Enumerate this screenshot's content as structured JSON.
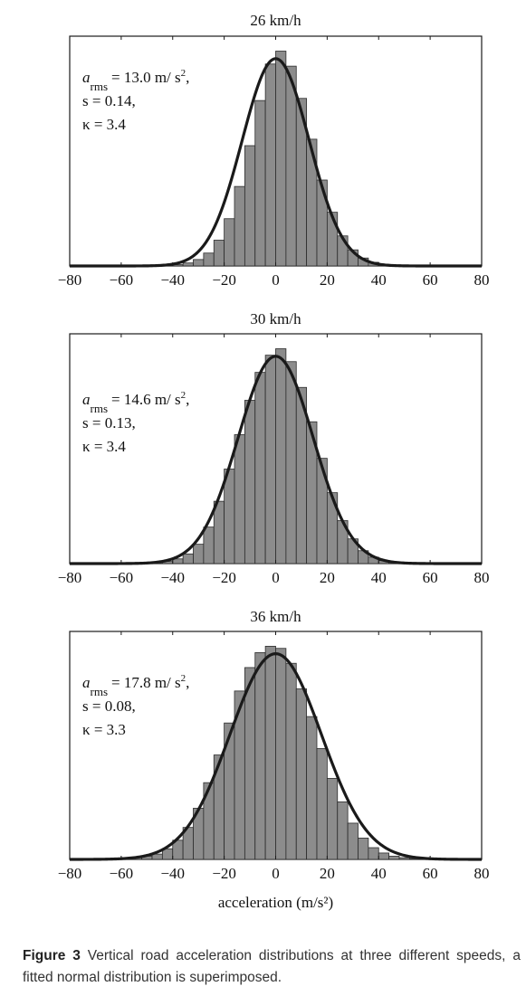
{
  "chart_data": [
    {
      "type": "bar",
      "title": "26 km/h",
      "xlim": [
        -80,
        80
      ],
      "xticks": [
        "−80",
        "−60",
        "−40",
        "−20",
        "0",
        "20",
        "40",
        "60",
        "80"
      ],
      "bin_width": 4,
      "bin_centers": [
        -42,
        -38,
        -34,
        -30,
        -26,
        -22,
        -18,
        -14,
        -10,
        -6,
        -2,
        2,
        6,
        10,
        14,
        18,
        22,
        26,
        30,
        34,
        38,
        42,
        46
      ],
      "values": [
        0.002,
        0.006,
        0.014,
        0.03,
        0.06,
        0.12,
        0.22,
        0.37,
        0.56,
        0.77,
        0.94,
        1.0,
        0.93,
        0.78,
        0.59,
        0.4,
        0.25,
        0.14,
        0.075,
        0.037,
        0.017,
        0.007,
        0.002
      ],
      "fit": {
        "name": "normal",
        "mean": 0,
        "sd": 13.0
      },
      "annotation": {
        "arms_label": "a",
        "arms_sub": "rms",
        "arms_value": "= 13.0 m/ s",
        "arms_exp": "2",
        "arms_tail": ",",
        "s": "s = 0.14,",
        "kappa": "κ = 3.4"
      }
    },
    {
      "type": "bar",
      "title": "30 km/h",
      "xlim": [
        -80,
        80
      ],
      "xticks": [
        "−80",
        "−60",
        "−40",
        "−20",
        "0",
        "20",
        "40",
        "60",
        "80"
      ],
      "bin_width": 4,
      "bin_centers": [
        -50,
        -46,
        -42,
        -38,
        -34,
        -30,
        -26,
        -22,
        -18,
        -14,
        -10,
        -6,
        -2,
        2,
        6,
        10,
        14,
        18,
        22,
        26,
        30,
        34,
        38,
        42,
        46,
        50,
        54
      ],
      "values": [
        0.002,
        0.005,
        0.01,
        0.022,
        0.045,
        0.09,
        0.17,
        0.29,
        0.44,
        0.6,
        0.76,
        0.89,
        0.97,
        1.0,
        0.94,
        0.82,
        0.66,
        0.49,
        0.33,
        0.2,
        0.115,
        0.06,
        0.03,
        0.014,
        0.006,
        0.003,
        0.001
      ],
      "fit": {
        "name": "normal",
        "mean": 0,
        "sd": 14.6
      },
      "annotation": {
        "arms_label": "a",
        "arms_sub": "rms",
        "arms_value": "= 14.6 m/ s",
        "arms_exp": "2",
        "arms_tail": ",",
        "s": "s = 0.13,",
        "kappa": "κ = 3.4"
      }
    },
    {
      "type": "bar",
      "title": "36 km/h",
      "xlim": [
        -80,
        80
      ],
      "xticks": [
        "−80",
        "−60",
        "−40",
        "−20",
        "0",
        "20",
        "40",
        "60",
        "80"
      ],
      "xlabel": "acceleration (m/s²)",
      "bin_width": 4,
      "bin_centers": [
        -62,
        -58,
        -54,
        -50,
        -46,
        -42,
        -38,
        -34,
        -30,
        -26,
        -22,
        -18,
        -14,
        -10,
        -6,
        -2,
        2,
        6,
        10,
        14,
        18,
        22,
        26,
        30,
        34,
        38,
        42,
        46,
        50,
        54,
        58,
        62,
        66
      ],
      "values": [
        0.001,
        0.003,
        0.008,
        0.015,
        0.025,
        0.05,
        0.09,
        0.15,
        0.24,
        0.36,
        0.49,
        0.64,
        0.79,
        0.9,
        0.97,
        1.0,
        0.99,
        0.92,
        0.8,
        0.67,
        0.52,
        0.38,
        0.27,
        0.17,
        0.1,
        0.055,
        0.03,
        0.015,
        0.008,
        0.004,
        0.002,
        0.001,
        0.0005
      ],
      "fit": {
        "name": "normal",
        "mean": 0,
        "sd": 17.8
      },
      "annotation": {
        "arms_label": "a",
        "arms_sub": "rms",
        "arms_value": "= 17.8 m/ s",
        "arms_exp": "2",
        "arms_tail": ",",
        "s": "s = 0.08,",
        "kappa": "κ = 3.3"
      }
    }
  ],
  "caption": {
    "label": "Figure 3",
    "text": " Vertical road acceleration distributions at three different speeds, a fitted normal distribution is superimposed."
  },
  "colors": {
    "bar_fill": "#8c8c8c",
    "bar_stroke": "#2b2b2b",
    "fit_line": "#1a1a1a",
    "axes": "#1a1a1a"
  }
}
